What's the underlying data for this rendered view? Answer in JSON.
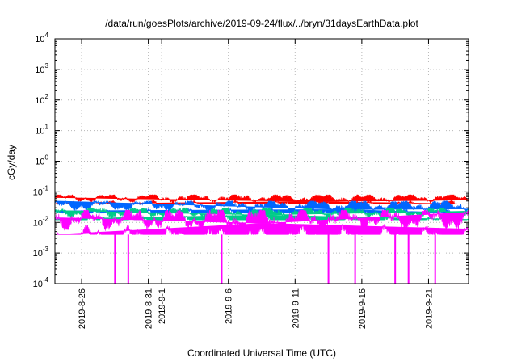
{
  "chart_data": {
    "type": "line",
    "title": "/data/run/goesPlots/archive/2019-09-24/flux/../bryn/31daysEarthData.plot",
    "xlabel": "Coordinated Universal Time (UTC)",
    "ylabel": "cGy/day",
    "yscale": "log",
    "ylim": [
      0.0001,
      10000
    ],
    "xlim": [
      "2019-08-24",
      "2019-09-24"
    ],
    "grid": true,
    "legend": "none",
    "x_ticks": [
      "2019-8-26",
      "2019-8-31",
      "2019-9-1",
      "2019-9-6",
      "2019-9-11",
      "2019-9-16",
      "2019-9-21"
    ],
    "y_ticks": [
      {
        "value": 0.0001,
        "base": "10",
        "exp": "-4"
      },
      {
        "value": 0.001,
        "base": "10",
        "exp": "-3"
      },
      {
        "value": 0.01,
        "base": "10",
        "exp": "-2"
      },
      {
        "value": 0.1,
        "base": "10",
        "exp": "-1"
      },
      {
        "value": 1,
        "base": "10",
        "exp": "0"
      },
      {
        "value": 10,
        "base": "10",
        "exp": "1"
      },
      {
        "value": 100,
        "base": "10",
        "exp": "2"
      },
      {
        "value": 1000,
        "base": "10",
        "exp": "3"
      },
      {
        "value": 10000,
        "base": "10",
        "exp": "4"
      }
    ],
    "series": [
      {
        "color": "#ff0000",
        "typical_low": 0.04,
        "typical_high": 0.08
      },
      {
        "color": "#0066ff",
        "typical_low": 0.02,
        "typical_high": 0.05
      },
      {
        "color": "#00cc88",
        "typical_low": 0.012,
        "typical_high": 0.03
      },
      {
        "color": "#ff00ff",
        "typical_low": 0.004,
        "typical_high": 0.025,
        "dropouts": [
          "2019-8-28",
          "2019-8-29",
          "2019-9-5",
          "2019-9-13",
          "2019-9-15",
          "2019-9-18",
          "2019-9-19",
          "2019-9-21"
        ]
      }
    ]
  }
}
